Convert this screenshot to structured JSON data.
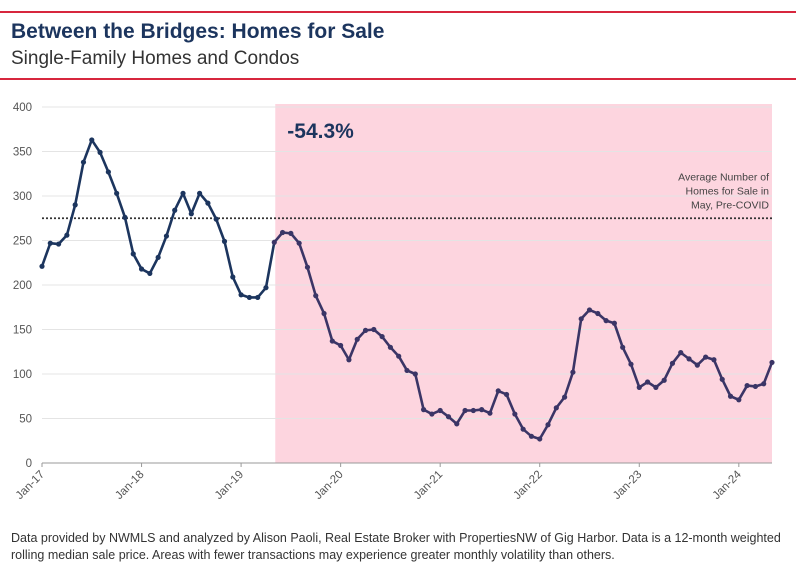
{
  "header": {
    "title": "Between the Bridges: Homes for Sale",
    "subtitle": "Single-Family Homes and Condos"
  },
  "footer": {
    "text": "Data provided by NWMLS and analyzed by Alison Paoli, Real Estate Broker with PropertiesNW of Gig Harbor. Data is a 12-month weighted rolling median sale price. Areas with fewer transactions may experience greater monthly volatility than others."
  },
  "colors": {
    "accent_rule": "#d7263d",
    "line_pre": "#1c355e",
    "line_post": "#3b3566",
    "shade": "#fdd5df",
    "reference": "#333333"
  },
  "chart_data": {
    "type": "line",
    "title": "",
    "xlabel": "",
    "ylabel": "",
    "ylim": [
      0,
      400
    ],
    "y_ticks": [
      0,
      50,
      100,
      150,
      200,
      250,
      300,
      350,
      400
    ],
    "x_ticks": [
      "Jan-17",
      "Jan-18",
      "Jan-19",
      "Jan-20",
      "Jan-21",
      "Jan-22",
      "Jan-23",
      "Jan-24"
    ],
    "grid": "horizontal",
    "start_month": "2017-01",
    "series": [
      {
        "name": "",
        "values": [
          221,
          247,
          246,
          256,
          290,
          338,
          363,
          349,
          327,
          303,
          276,
          235,
          218,
          213,
          231,
          255,
          284,
          303,
          280,
          303,
          292,
          274,
          249,
          209,
          189,
          186,
          186,
          197,
          248,
          259,
          258,
          247,
          220,
          188,
          168,
          137,
          132,
          116,
          139,
          149,
          150,
          142,
          130,
          120,
          104,
          100,
          60,
          55,
          59,
          52,
          44,
          59,
          59,
          60,
          56,
          81,
          77,
          55,
          38,
          30,
          27,
          43,
          62,
          74,
          102,
          162,
          172,
          168,
          160,
          157,
          130,
          111,
          85,
          91,
          85,
          93,
          112,
          124,
          117,
          110,
          119,
          116,
          94,
          75,
          71,
          87,
          86,
          89,
          113
        ]
      }
    ],
    "reference_line": {
      "value": 275,
      "label": "Average Number of Homes for Sale in May, Pre-COVID"
    },
    "shaded_region": {
      "start_month": "2019-05",
      "end_month": "2024-05",
      "label": "-54.3%"
    }
  }
}
